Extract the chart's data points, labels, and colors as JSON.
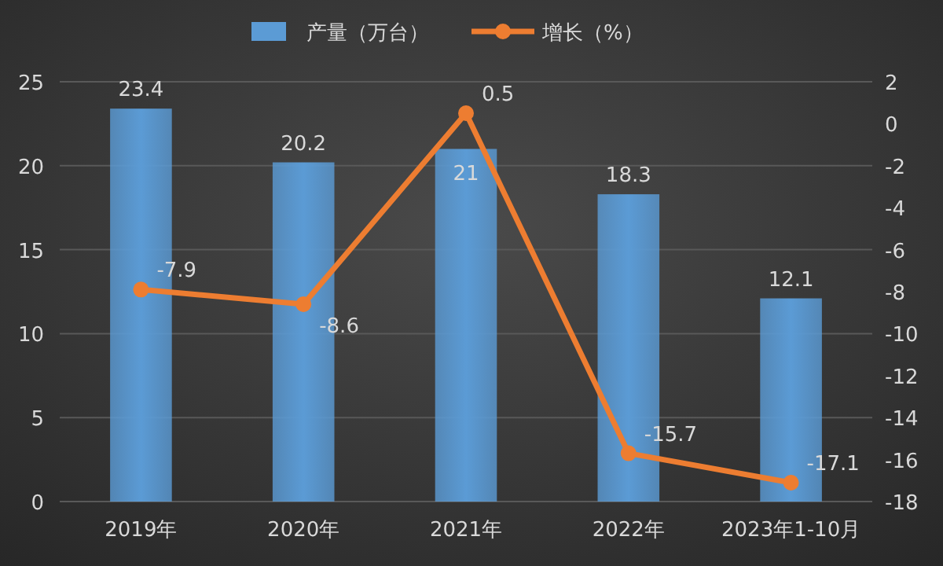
{
  "chart_data": {
    "type": "bar",
    "categories": [
      "2019年",
      "2020年",
      "2021年",
      "2022年",
      "2023年1-10月"
    ],
    "series": [
      {
        "name": "产量（万台）",
        "color": "#5b9bd5",
        "values": [
          23.4,
          20.2,
          21,
          18.3,
          12.1
        ]
      },
      {
        "name": "增长（%）",
        "type": "line",
        "axis": "y2",
        "color": "#ed7d31",
        "values": [
          -7.9,
          -8.6,
          0.5,
          -15.7,
          -17.1
        ],
        "marker": "circle"
      }
    ],
    "ylim": [
      0,
      25
    ],
    "yticks": [
      0,
      5,
      10,
      15,
      20,
      25
    ],
    "y2lim": [
      -18,
      2
    ],
    "y2ticks": [
      -18,
      -16,
      -14,
      -12,
      -10,
      -8,
      -6,
      -4,
      -2,
      0,
      2
    ],
    "grid": "y",
    "legend": "top",
    "data_labels": true
  }
}
